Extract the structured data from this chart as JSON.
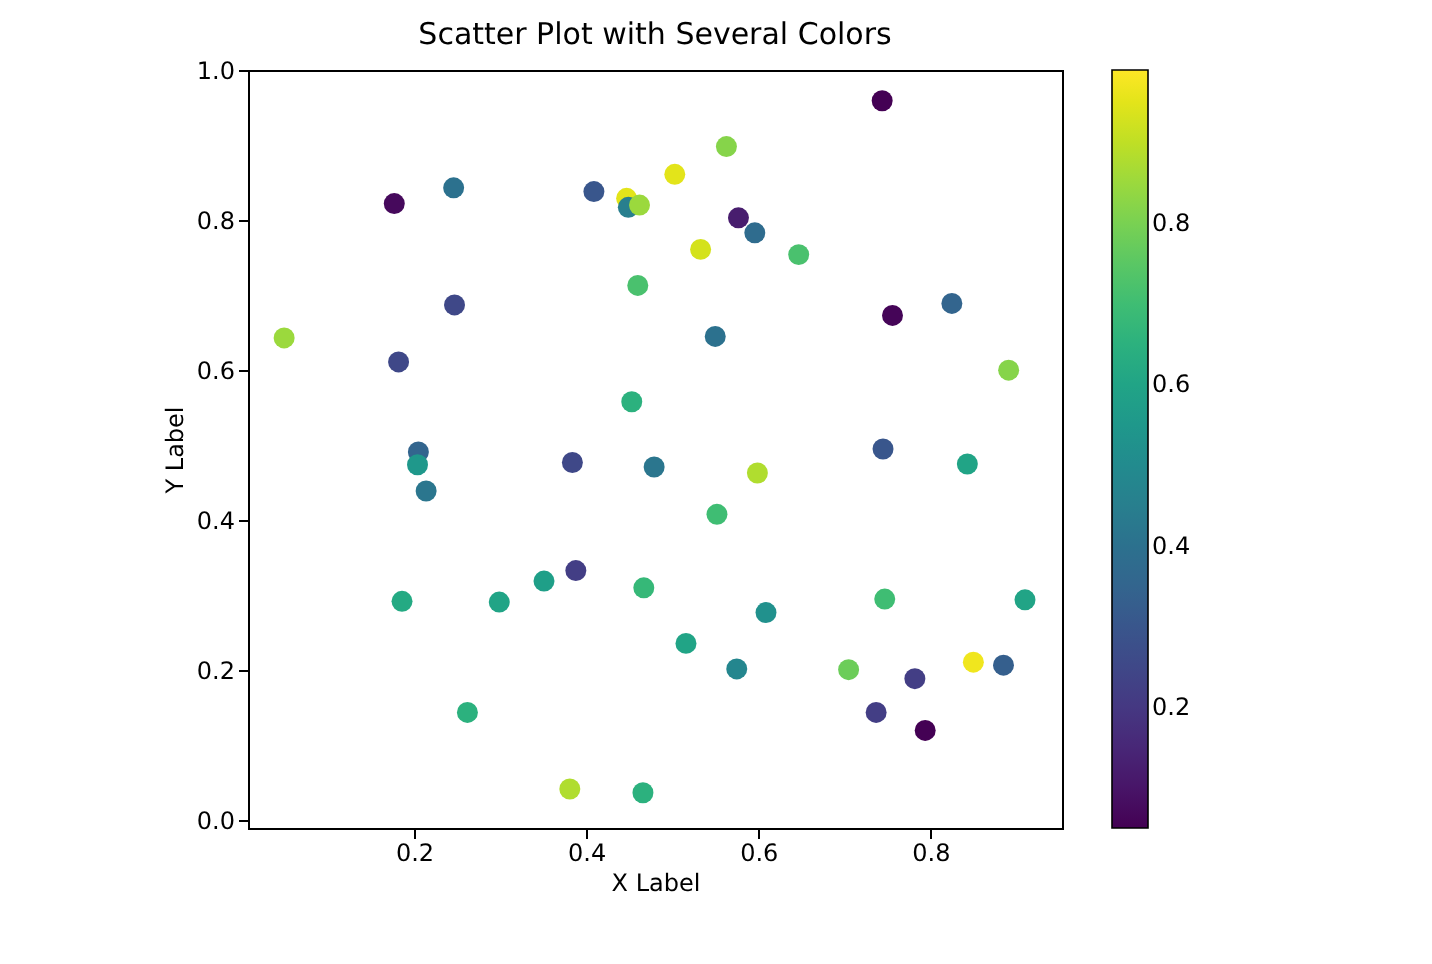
{
  "chart_data": {
    "type": "scatter",
    "title": "Scatter Plot with Several Colors",
    "xlabel": "X Label",
    "ylabel": "Y Label",
    "x": [
      0.177,
      0.246,
      0.409,
      0.447,
      0.449,
      0.462,
      0.247,
      0.049,
      0.46,
      0.182,
      0.453,
      0.744,
      0.563,
      0.503,
      0.577,
      0.596,
      0.533,
      0.647,
      0.825,
      0.756,
      0.55,
      0.891,
      0.205,
      0.204,
      0.214,
      0.384,
      0.479,
      0.388,
      0.351,
      0.467,
      0.186,
      0.299,
      0.262,
      0.381,
      0.466,
      0.745,
      0.843,
      0.599,
      0.552,
      0.747,
      0.91,
      0.609,
      0.516,
      0.575,
      0.705,
      0.85,
      0.885,
      0.782,
      0.737,
      0.794
    ],
    "values": [
      0.822,
      0.843,
      0.838,
      0.829,
      0.817,
      0.82,
      0.687,
      0.643,
      0.713,
      0.611,
      0.558,
      0.959,
      0.898,
      0.861,
      0.803,
      0.783,
      0.761,
      0.754,
      0.689,
      0.673,
      0.645,
      0.6,
      0.491,
      0.474,
      0.439,
      0.477,
      0.471,
      0.333,
      0.319,
      0.31,
      0.292,
      0.291,
      0.144,
      0.042,
      0.037,
      0.495,
      0.475,
      0.463,
      0.408,
      0.295,
      0.294,
      0.277,
      0.236,
      0.202,
      0.201,
      0.211,
      0.207,
      0.189,
      0.144,
      0.12
    ],
    "cvalues": [
      0.07,
      0.4,
      0.3,
      0.95,
      0.45,
      0.85,
      0.25,
      0.85,
      0.72,
      0.25,
      0.65,
      0.05,
      0.82,
      0.95,
      0.12,
      0.38,
      0.93,
      0.72,
      0.35,
      0.06,
      0.4,
      0.82,
      0.35,
      0.55,
      0.42,
      0.25,
      0.42,
      0.22,
      0.58,
      0.68,
      0.62,
      0.6,
      0.65,
      0.88,
      0.65,
      0.3,
      0.6,
      0.88,
      0.7,
      0.7,
      0.6,
      0.52,
      0.6,
      0.48,
      0.78,
      0.97,
      0.33,
      0.22,
      0.22,
      0.05
    ],
    "xlim": [
      0.007,
      0.953
    ],
    "ylim": [
      -0.01,
      1.0
    ],
    "xticks": [
      0.2,
      0.4,
      0.6,
      0.8
    ],
    "yticks": [
      {
        "value": 0,
        "label": "0.0"
      },
      0.2,
      0.4,
      0.6,
      0.8,
      {
        "value": 1,
        "label": "1.0"
      }
    ],
    "clim": [
      0.05,
      0.99
    ],
    "cticks": [
      0.2,
      0.4,
      0.6,
      0.8
    ],
    "grid": false
  }
}
